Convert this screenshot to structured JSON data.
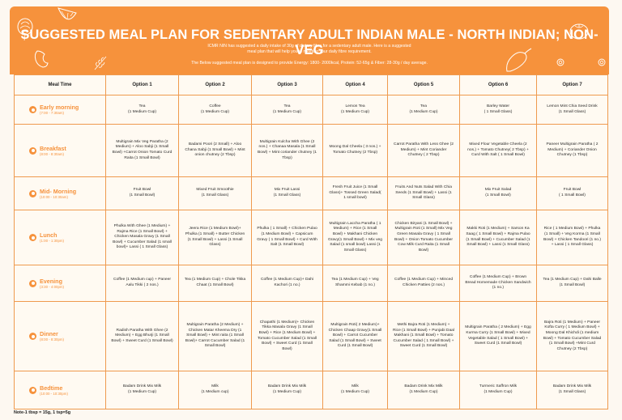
{
  "banner": {
    "title": "SUGGESTED  MEAL PLAN FOR SEDENTARY ADULT INDIAN MALE - NORTH INDIAN; NON-VEG",
    "subtitle_1": "ICMR NIN has suggested a daily intake of 30g of dietary fibre for a sedentary adult male. Here is a suggested meal plan that will help you in meeting your daily fibre requirement.",
    "subtitle_2": "The Below suggested meal plan is designed to provide Energy: 1800- 2000kcal, Protein: 52-65g & Fiber: 28-30g / day average.",
    "background_color": "#f6923c",
    "decorations": [
      "onion-icon",
      "orange-slice-icon",
      "cashew-icon",
      "herb-icon",
      "tomato-icon",
      "capsicum-icon",
      "ring-icon",
      "ring-icon"
    ]
  },
  "table": {
    "headers": [
      "Meal Time",
      "Option 1",
      "Option 2",
      "Option 3",
      "Option 4",
      "Option 5",
      "Option 6",
      "Option 7"
    ],
    "rows": [
      {
        "meal": "Early morning",
        "time": "(7:00 - 7:30am)",
        "icon": "sunrise-icon",
        "options": [
          "Tea\n(1 Medium Cup)",
          "Coffee\n(1 Medium Cup)",
          "Tea\n(1 Medium Cup)",
          "Lemon Tea\n(1 Medium Cup)",
          "Tea\n(1 Medium Cup)",
          "Barley Water\n( 1 Small Glass)",
          "Lemon Mint Chia Seed Drink\n(1 Small Glass)"
        ]
      },
      {
        "meal": "Breakfast",
        "time": "(8:00 - 8:30am)",
        "icon": "breakfast-icon",
        "options": [
          "Multigrain Mix Veg Paratha (2 Medium) + Aloo Sabji (1 Small Bowl) +Carrot Onion Tomato Curd Raita (1 Small Bowl)",
          "Badami Poori  (2 Small) + Aloo Chana Sabji (1 Small Bowl) + Mint onion chutney (2 Tbsp)",
          "Multigrain Kulcha With Ghee (2 nos.) + Chanaa Masala (1 Small Bowl) +  Mint coriander chutney (1 Tbsp)",
          "Moong Dal Cheela ( 3 nos.) + Tomato Chutney (2 Tbsp)",
          "Carrot Paratha With Less Ghee (2 Medium) + Mint Coriander Chutney ( 2 Tbsp)",
          "Mixed Flour Vegetable Cheela (2 nos.) + Tomato Chutney( 2 Tbsp) + Curd With Salt ( 1 Small Bowl)",
          "Paneer Multigrain Paratha ( 2 Medium) + Coriander Onion Chutney (1 Tbsp)"
        ]
      },
      {
        "meal": "Mid- Morning",
        "time": "(10:00 - 10:30am)",
        "icon": "snack-icon",
        "options": [
          "Fruit Bowl\n(1 Small Bowl)",
          "Mixed Fruit Smoothie\n(1 Small Glass)",
          "Mix Fruit Lassi\n(1 Small Glass)",
          "Fresh Fruit Juice (1 Small Glass)+ Tossed Green Salad( 1 small bowl)",
          "Fruits And Nuts Salad With Chia Seeds (1 Small Bowl) + Lassi (1 Small Glass)",
          "Mix Fruit Salad\n(1 Small Bowl)",
          "Fruit Bowl\n( 1 Small Bowl)"
        ]
      },
      {
        "meal": "Lunch",
        "time": "(1:00 - 1:30pm)",
        "icon": "lunch-icon",
        "options": [
          "Phulka With Ghee  (1 Medium) + Rajma Rice (1 Small Bowl)  + Chicken Masala Gravy (1 Small Bowl) + Cucumber Salad (1 small bowl)+ Lassi ( 1 Small Glass)",
          "Jeera Rice (1 Medium Bowl)+ Phulka (1 Small) + Butter Chicken (1 Small Bowl) + Lassi (1 Small Glass)",
          "Phulka ( 1 Small) + Chicken Pulao (1 Medium Bowl) + Capsicum Gravy ( 1 Small Bowl)  + Curd With Salt (1 Small Bowl)",
          "Multigrain Laccha Paratha ( 1 Medium) + Rice (1 Small Bowl) + Makhani Chicken Gravy(1 Small Bowl) + Mix veg Salad (1 small bowl) Lassi (1 Small Glass)",
          "Chicken Biryani  (1 Small Bowl) + Multigrain Roti (1 Small) Mix Veg Green Masala Gravy  ( 1 Small Bowl) + Onion Tomato Cucumber Cow Milk Curd Raita (1 Small Bowl)",
          "Makki Roti  (1 Medium) + Sarson Ka Saag ( 1 Small Bowl) + Rajma Pulao (1 Small Bowl) + Cucumber Salad (1 Small Bowl) +  Lassi (1 Small Glass)",
          "Rice ( 1 Medium Bowl) + Phulka (1 Small) + Veg Korma (1 Small Bowl) + Chicken Tandoori (1 no.) + Lassi ( 1 Small Glass)"
        ]
      },
      {
        "meal": "Evening",
        "time": "(3:30 - 4:00pm)",
        "icon": "tea-icon",
        "options": [
          "Coffee (1 Medium cup) + Paneer Aalu Tikki ( 2 nos.)",
          "Tea  (1 Medium Cup) + Chole Tikka Chaat (1 Small Bowl)",
          "Coffee (1 Medium Cup)+ Dahi Kachori (1 no.)",
          "Tea (1 Medium Cup) + Veg Shammi Kebab (1 no.)",
          "Coffee (1 Medium Cup) + Minced Chicken Patties (2 nos.)",
          "Coffee (1 Medium Cup) + Brown Bread Homemade Chicken Sandwich (1 no.)",
          "Tea (1 Medium Cup) + Dahi Balle (1 Small Bowl)"
        ]
      },
      {
        "meal": "Dinner",
        "time": "(8:00 - 8:30pm)",
        "icon": "dinner-icon",
        "options": [
          "Radish Paratha With Ghee (2 Medium) + Egg Bhurji (1 Small Bowl)  + Sweet Curd (1 Small Bowl)",
          "Multigrain Paratha (2 Medium) + Chicken Matar Kheema Dry (1 Small Bowl) + Mint raita  (1 Small Bowl)+ Carrot Cucumber Salad (1 Small Bowl)",
          "Chapathi  (1 Medium)+ Chicken Tikka Masala Gravy (1 Small Bowl) + Rice (1 Medium Bowl) + Tomato Cucumber Salad (1 Small Bowl) + Sweet Curd  (1 Small Bowl)",
          "Multigrain Roti( 2 Medium)+ Chicken Chaap Gravy(1 Small Bowl) + Carrot Cucumber Salad (1 Small Bowl) + Sweet Curd (1 Small Bowl)",
          "Methi Bajra Roti (1 Medium) + Rice (1 Small Bowl) + Punjabi Daal Makhani (1 Small Bowl) + Tomato Cucumber Salad ( 1 Small Bowl) + Sweet Curd (1 Small Bowl)",
          "Multigrain Paratha ( 2 Medium) + Egg Kurma Curry  (1 Small Bowl) + Mixed Vegetable Salad ( 1 Small Bowl) + Sweet Curd (1 Small Bowl)",
          "Bajra Roti (1 Medium) + Paneer Kofta Curry ( 1 Medium Bowl) + Moong Dal Khichdi  (1 medium Bowl) + Tomato Cucumber Salad (1 Small Bowl) +Mint Curd Chutney (2 Tbsp)"
        ]
      },
      {
        "meal": "Bedtime",
        "time": "(10:00 - 10:30pm)",
        "icon": "bed-icon",
        "options": [
          "Badam Drink Mix Milk\n(1 Medium Cup)",
          "Milk\n(1 Medium cup)",
          "Badam Drink Mix Milk\n(1 Medium Cup)",
          "Milk\n(1 Medium Cup)",
          "Badam Drink Mix Milk\n(1 Medium Cup)",
          "Turmeric Saffron Milk\n(1 Medium Cup)",
          "Badam Drink Mix Milk\n(1 Small Glass)"
        ]
      }
    ]
  },
  "note": "Note-1 tbsp = 15g, 1 tsp=5g",
  "colors": {
    "accent": "#f6923c",
    "border": "#ef9a4e",
    "background": "#fdf8f1",
    "cell_background": "#fffaf2"
  }
}
